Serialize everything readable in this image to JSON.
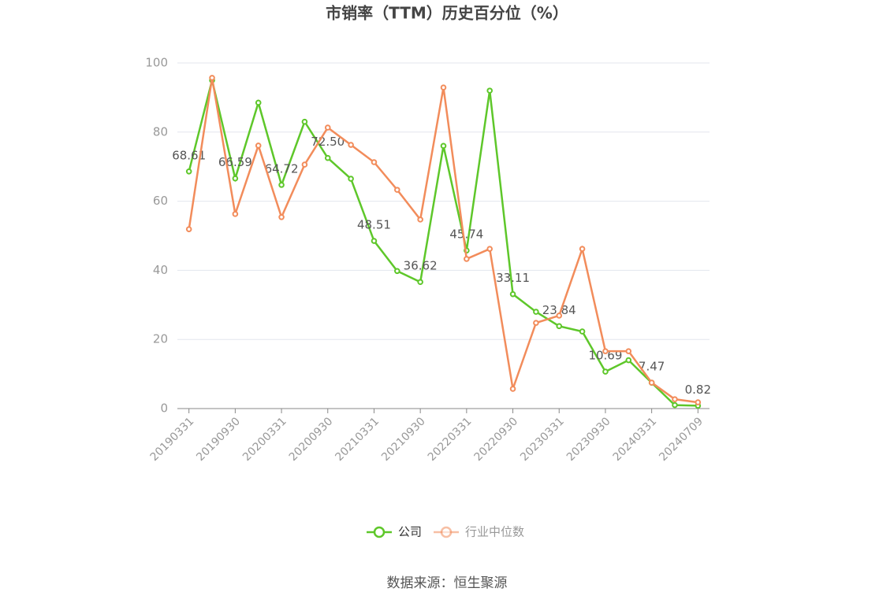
{
  "chart_data": {
    "type": "line",
    "title": "市销率（TTM）历史百分位（%）",
    "source": "数据来源：恒生聚源",
    "categories": [
      "20190331",
      null,
      "20190930",
      null,
      "20200331",
      null,
      "20200930",
      null,
      "20210331",
      null,
      "20210930",
      null,
      "20220331",
      null,
      "20220930",
      null,
      "20230331",
      null,
      "20230930",
      null,
      "20240331",
      null,
      "20240709"
    ],
    "series": [
      {
        "name": "公司",
        "color": "#5ec72a",
        "values": [
          68.61,
          95.0,
          66.59,
          88.5,
          64.72,
          83.0,
          72.5,
          66.5,
          48.51,
          39.8,
          36.62,
          76.0,
          45.74,
          92.0,
          33.11,
          28.0,
          23.84,
          22.3,
          10.69,
          14.0,
          7.47,
          1.0,
          0.82
        ],
        "value_labels": [
          "68.61",
          null,
          "66.59",
          null,
          "64.72",
          null,
          "72.50",
          null,
          "48.51",
          null,
          "36.62",
          null,
          "45.74",
          null,
          "33.11",
          null,
          "23.84",
          null,
          "10.69",
          null,
          "7.47",
          null,
          "0.82"
        ]
      },
      {
        "name": "行业中位数",
        "color": "#f28c5b",
        "values": [
          51.9,
          95.7,
          56.3,
          76.1,
          55.4,
          70.6,
          81.3,
          76.3,
          71.3,
          63.3,
          54.7,
          92.9,
          43.3,
          46.2,
          5.7,
          24.8,
          26.9,
          46.2,
          16.6,
          16.6,
          7.5,
          2.7,
          1.8
        ]
      }
    ],
    "ylim": [
      0,
      100
    ],
    "yticks": [
      0,
      20,
      40,
      60,
      80,
      100
    ],
    "grid": true
  }
}
